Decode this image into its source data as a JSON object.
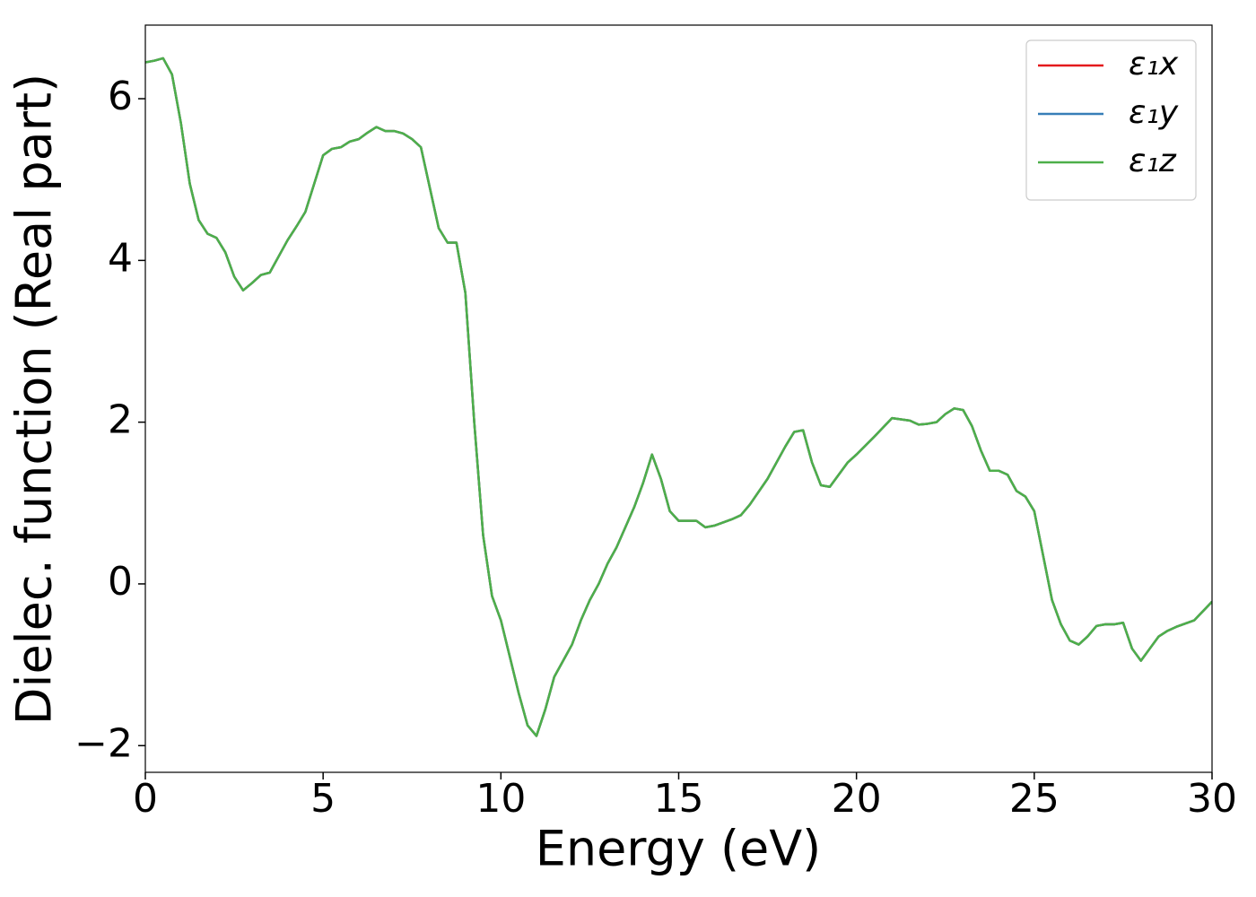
{
  "chart_data": {
    "type": "line",
    "xlabel": "Energy (eV)",
    "ylabel": "Dielec. function (Real part)",
    "xlim": [
      0,
      30
    ],
    "ylim": [
      -2.33,
      6.91
    ],
    "xticks": [
      0,
      5,
      10,
      15,
      20,
      25,
      30
    ],
    "yticks": [
      {
        "value": -2,
        "label": "−2"
      },
      0,
      2,
      4,
      6
    ],
    "legend": "upper right",
    "grid": false,
    "x": [
      0,
      0.25,
      0.5,
      0.75,
      1,
      1.25,
      1.5,
      1.75,
      2,
      2.25,
      2.5,
      2.75,
      3,
      3.25,
      3.5,
      3.75,
      4,
      4.25,
      4.5,
      4.75,
      5,
      5.25,
      5.5,
      5.75,
      6,
      6.25,
      6.5,
      6.75,
      7,
      7.25,
      7.5,
      7.75,
      8,
      8.25,
      8.5,
      8.75,
      9,
      9.25,
      9.5,
      9.75,
      10,
      10.25,
      10.5,
      10.75,
      11,
      11.25,
      11.5,
      11.75,
      12,
      12.25,
      12.5,
      12.75,
      13,
      13.25,
      13.5,
      13.75,
      14,
      14.25,
      14.5,
      14.75,
      15,
      15.25,
      15.5,
      15.75,
      16,
      16.5,
      16.75,
      17,
      17.5,
      18,
      18.25,
      18.5,
      18.75,
      19,
      19.25,
      19.5,
      19.75,
      20,
      20.5,
      21,
      21.5,
      21.75,
      22,
      22.25,
      22.5,
      22.75,
      23,
      23.25,
      23.5,
      23.75,
      24,
      24.25,
      24.5,
      24.75,
      25,
      25.25,
      25.5,
      25.75,
      26,
      26.25,
      26.5,
      26.75,
      27,
      27.25,
      27.5,
      27.75,
      28,
      28.25,
      28.5,
      28.75,
      29,
      29.5,
      30
    ],
    "series": [
      {
        "name": "ε₁x",
        "color": "#e41a1c",
        "values": [
          6.45,
          6.47,
          6.5,
          6.3,
          5.7,
          4.95,
          4.5,
          4.33,
          4.28,
          4.1,
          3.8,
          3.63,
          3.72,
          3.82,
          3.85,
          4.05,
          4.25,
          4.42,
          4.6,
          4.95,
          5.3,
          5.38,
          5.4,
          5.47,
          5.5,
          5.58,
          5.65,
          5.6,
          5.6,
          5.57,
          5.5,
          5.4,
          4.9,
          4.4,
          4.22,
          4.22,
          3.6,
          2.0,
          0.6,
          -0.15,
          -0.45,
          -0.9,
          -1.35,
          -1.75,
          -1.88,
          -1.55,
          -1.15,
          -0.95,
          -0.75,
          -0.45,
          -0.2,
          0.0,
          0.25,
          0.45,
          0.7,
          0.95,
          1.25,
          1.6,
          1.3,
          0.9,
          0.78,
          0.78,
          0.78,
          0.7,
          0.72,
          0.8,
          0.85,
          0.98,
          1.3,
          1.7,
          1.88,
          1.9,
          1.5,
          1.22,
          1.2,
          1.35,
          1.5,
          1.6,
          1.82,
          2.05,
          2.02,
          1.97,
          1.98,
          2.0,
          2.1,
          2.17,
          2.15,
          1.95,
          1.65,
          1.4,
          1.4,
          1.35,
          1.15,
          1.08,
          0.9,
          0.35,
          -0.2,
          -0.5,
          -0.7,
          -0.75,
          -0.65,
          -0.52,
          -0.5,
          -0.5,
          -0.48,
          -0.8,
          -0.95,
          -0.8,
          -0.65,
          -0.58,
          -0.53,
          -0.45,
          -0.22
        ]
      },
      {
        "name": "ε₁y",
        "color": "#377eb8",
        "values": [
          6.45,
          6.47,
          6.5,
          6.3,
          5.7,
          4.95,
          4.5,
          4.33,
          4.28,
          4.1,
          3.8,
          3.63,
          3.72,
          3.82,
          3.85,
          4.05,
          4.25,
          4.42,
          4.6,
          4.95,
          5.3,
          5.38,
          5.4,
          5.47,
          5.5,
          5.58,
          5.65,
          5.6,
          5.6,
          5.57,
          5.5,
          5.4,
          4.9,
          4.4,
          4.22,
          4.22,
          3.6,
          2.0,
          0.6,
          -0.15,
          -0.45,
          -0.9,
          -1.35,
          -1.75,
          -1.88,
          -1.55,
          -1.15,
          -0.95,
          -0.75,
          -0.45,
          -0.2,
          0.0,
          0.25,
          0.45,
          0.7,
          0.95,
          1.25,
          1.6,
          1.3,
          0.9,
          0.78,
          0.78,
          0.78,
          0.7,
          0.72,
          0.8,
          0.85,
          0.98,
          1.3,
          1.7,
          1.88,
          1.9,
          1.5,
          1.22,
          1.2,
          1.35,
          1.5,
          1.6,
          1.82,
          2.05,
          2.02,
          1.97,
          1.98,
          2.0,
          2.1,
          2.17,
          2.15,
          1.95,
          1.65,
          1.4,
          1.4,
          1.35,
          1.15,
          1.08,
          0.9,
          0.35,
          -0.2,
          -0.5,
          -0.7,
          -0.75,
          -0.65,
          -0.52,
          -0.5,
          -0.5,
          -0.48,
          -0.8,
          -0.95,
          -0.8,
          -0.65,
          -0.58,
          -0.53,
          -0.45,
          -0.22
        ]
      },
      {
        "name": "ε₁z",
        "color": "#4daf4a",
        "values": [
          6.45,
          6.47,
          6.5,
          6.3,
          5.7,
          4.95,
          4.5,
          4.33,
          4.28,
          4.1,
          3.8,
          3.63,
          3.72,
          3.82,
          3.85,
          4.05,
          4.25,
          4.42,
          4.6,
          4.95,
          5.3,
          5.38,
          5.4,
          5.47,
          5.5,
          5.58,
          5.65,
          5.6,
          5.6,
          5.57,
          5.5,
          5.4,
          4.9,
          4.4,
          4.22,
          4.22,
          3.6,
          2.0,
          0.6,
          -0.15,
          -0.45,
          -0.9,
          -1.35,
          -1.75,
          -1.88,
          -1.55,
          -1.15,
          -0.95,
          -0.75,
          -0.45,
          -0.2,
          0.0,
          0.25,
          0.45,
          0.7,
          0.95,
          1.25,
          1.6,
          1.3,
          0.9,
          0.78,
          0.78,
          0.78,
          0.7,
          0.72,
          0.8,
          0.85,
          0.98,
          1.3,
          1.7,
          1.88,
          1.9,
          1.5,
          1.22,
          1.2,
          1.35,
          1.5,
          1.6,
          1.82,
          2.05,
          2.02,
          1.97,
          1.98,
          2.0,
          2.1,
          2.17,
          2.15,
          1.95,
          1.65,
          1.4,
          1.4,
          1.35,
          1.15,
          1.08,
          0.9,
          0.35,
          -0.2,
          -0.5,
          -0.7,
          -0.75,
          -0.65,
          -0.52,
          -0.5,
          -0.5,
          -0.48,
          -0.8,
          -0.95,
          -0.8,
          -0.65,
          -0.58,
          -0.53,
          -0.45,
          -0.22
        ]
      }
    ]
  }
}
